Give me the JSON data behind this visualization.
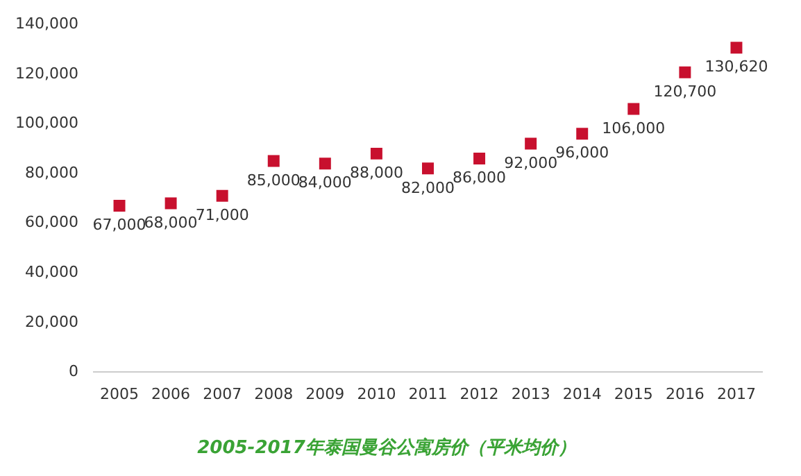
{
  "chart_data": {
    "type": "scatter",
    "title": "2005-2017年泰国曼谷公寓房价（平米均价）",
    "categories": [
      "2005",
      "2006",
      "2007",
      "2008",
      "2009",
      "2010",
      "2011",
      "2012",
      "2013",
      "2014",
      "2015",
      "2016",
      "2017"
    ],
    "series": [
      {
        "color": "#c8102e",
        "values": [
          67000,
          68000,
          71000,
          85000,
          84000,
          88000,
          82000,
          86000,
          92000,
          96000,
          106000,
          120700,
          130620
        ],
        "value_labels": [
          "67,000",
          "68,000",
          "71,000",
          "85,000",
          "84,000",
          "88,000",
          "82,000",
          "86,000",
          "92,000",
          "96,000",
          "106,000",
          "120,700",
          "130,620"
        ]
      }
    ],
    "ylim": [
      0,
      140000
    ],
    "yticks": [
      {
        "value": 0,
        "label": "0"
      },
      {
        "value": 20000,
        "label": "20,000"
      },
      {
        "value": 40000,
        "label": "40,000"
      },
      {
        "value": 60000,
        "label": "60,000"
      },
      {
        "value": 80000,
        "label": "80,000"
      },
      {
        "value": 100000,
        "label": "100,000"
      },
      {
        "value": 120000,
        "label": "120,000"
      },
      {
        "value": 140000,
        "label": "140,000"
      }
    ],
    "marker": "square",
    "grid": false,
    "legend": false
  }
}
